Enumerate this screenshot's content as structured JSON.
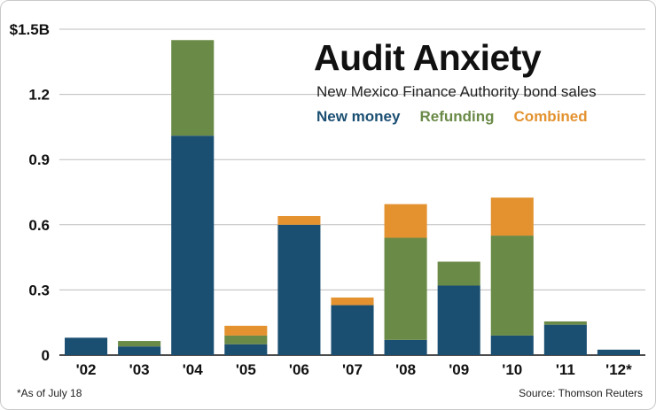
{
  "chart_data": {
    "type": "bar",
    "stacked": true,
    "title": "Audit Anxiety",
    "subtitle": "New Mexico Finance Authority bond sales",
    "categories": [
      "'02",
      "'03",
      "'04",
      "'05",
      "'06",
      "'07",
      "'08",
      "'09",
      "'10",
      "'11",
      "'12*"
    ],
    "series": [
      {
        "name": "New money",
        "color": "#1b4f72",
        "values": [
          0.08,
          0.04,
          1.01,
          0.05,
          0.6,
          0.23,
          0.07,
          0.32,
          0.09,
          0.14,
          0.025
        ]
      },
      {
        "name": "Refunding",
        "color": "#6a8a47",
        "values": [
          0,
          0.025,
          0.44,
          0.04,
          0,
          0,
          0.47,
          0.11,
          0.46,
          0.015,
          0
        ]
      },
      {
        "name": "Combined",
        "color": "#e3922f",
        "values": [
          0,
          0,
          0,
          0.045,
          0.04,
          0.035,
          0.155,
          0,
          0.175,
          0,
          0
        ]
      }
    ],
    "ylim": [
      0,
      1.5
    ],
    "yticks": [
      0,
      0.3,
      0.6,
      0.9,
      1.2,
      1.5
    ],
    "ytick_labels": [
      "0",
      "0.3",
      "0.6",
      "0.9",
      "1.2",
      "$1.5B"
    ],
    "grid": true,
    "legend_position": "top-right",
    "footnote": "*As of July 18",
    "source": "Source: Thomson Reuters"
  }
}
